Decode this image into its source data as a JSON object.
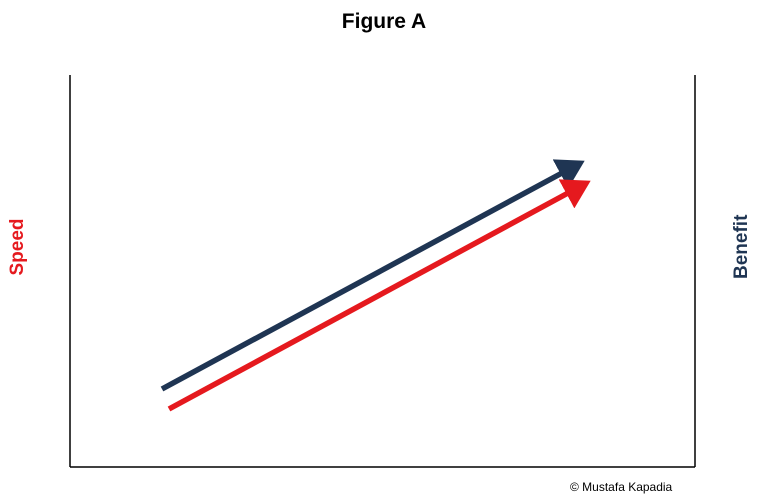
{
  "title": "Figure A",
  "left_label": "Speed",
  "right_label": "Benefit",
  "copyright": "© Mustafa  Kapadia",
  "colors": {
    "speed": "#e5191e",
    "benefit": "#1f3553",
    "axis": "#000000"
  }
}
